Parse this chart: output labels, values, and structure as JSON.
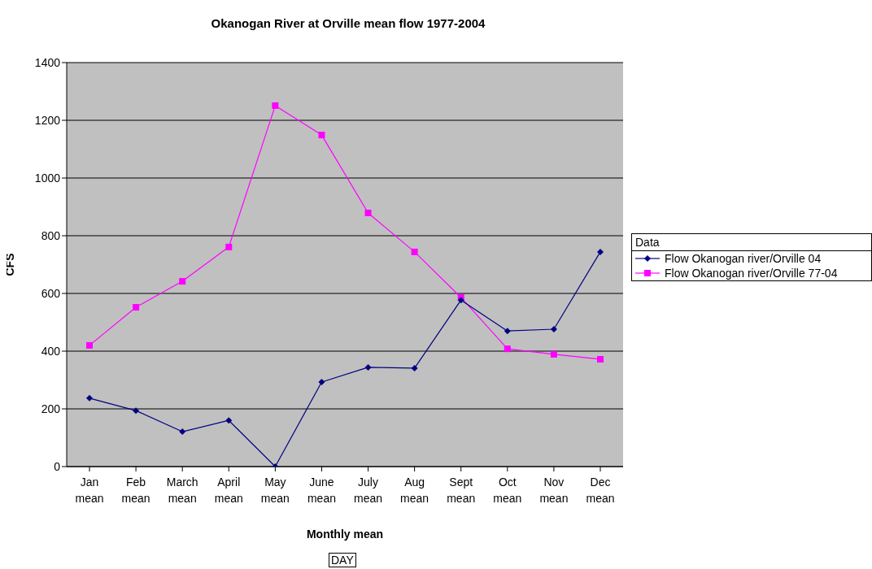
{
  "chart_data": {
    "type": "line",
    "title": "Okanogan River at Orville mean flow 1977-2004",
    "xlabel": "Monthly mean",
    "ylabel": "CFS",
    "legend_title": "Data",
    "annotations": [
      "DAY"
    ],
    "categories": [
      "Jan mean",
      "Feb mean",
      "March mean",
      "April mean",
      "May mean",
      "June mean",
      "July mean",
      "Aug mean",
      "Sept mean",
      "Oct mean",
      "Nov mean",
      "Dec mean"
    ],
    "series": [
      {
        "name": "Flow Okanogan river/Orville 04",
        "color": "#000080",
        "marker": "diamond",
        "values": [
          237,
          194,
          121,
          160,
          0,
          293,
          344,
          341,
          577,
          470,
          476,
          744
        ]
      },
      {
        "name": "Flow Okanogan river/Orville 77-04",
        "color": "#ff00ff",
        "marker": "square",
        "values": [
          420,
          552,
          642,
          761,
          1251,
          1149,
          879,
          744,
          586,
          408,
          389,
          372
        ]
      }
    ],
    "ylim": [
      0,
      1400
    ],
    "yticks": [
      0,
      200,
      400,
      600,
      800,
      1000,
      1200,
      1400
    ],
    "grid": "y",
    "legend": "right",
    "line_style": "solid"
  }
}
